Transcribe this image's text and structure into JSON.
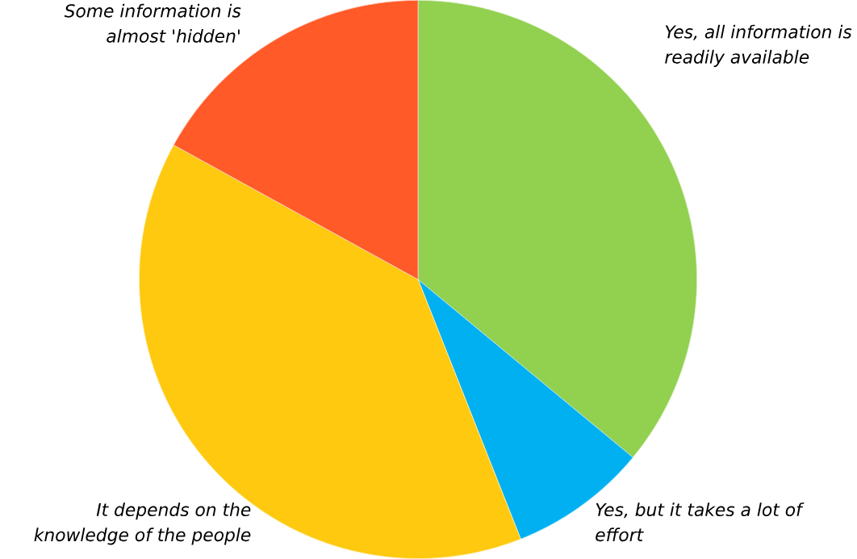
{
  "chart_data": {
    "type": "pie",
    "categories": [
      "Yes, all information is readily available",
      "Yes, but it takes a lot of effort",
      "It depends on the knowledge of the people",
      "Some information is almost 'hidden'"
    ],
    "values": [
      36,
      8,
      39,
      17
    ],
    "colors": [
      "#92d050",
      "#00b0f0",
      "#fec90f",
      "#ff5a28"
    ]
  }
}
